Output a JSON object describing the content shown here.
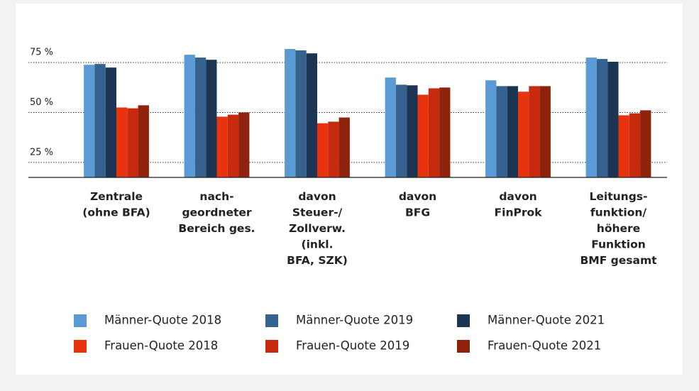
{
  "chart_data": {
    "type": "bar",
    "categories": [
      [
        "Zentrale",
        "(ohne BFA)"
      ],
      [
        "nach-",
        "geordneter",
        "Bereich ges."
      ],
      [
        "davon",
        "Steuer-/",
        "Zollverw.",
        "(inkl.",
        "BFA, SZK)"
      ],
      [
        "davon",
        "BFG"
      ],
      [
        "davon",
        "FinProk"
      ],
      [
        "Leitungs-",
        "funktion/",
        "höhere",
        "Funktion",
        "BMF gesamt"
      ]
    ],
    "series": [
      {
        "name": "Männer-Quote 2018",
        "color": "#5b9bd5",
        "values": [
          68.9,
          73.9,
          76.8,
          62.5,
          61.1,
          72.5
        ]
      },
      {
        "name": "Männer-Quote 2019",
        "color": "#35628f",
        "values": [
          69.3,
          72.5,
          76.1,
          58.9,
          58.2,
          71.8
        ]
      },
      {
        "name": "Männer-Quote 2021",
        "color": "#1c3553",
        "values": [
          67.5,
          71.4,
          74.6,
          58.6,
          58.2,
          70.4
        ]
      },
      {
        "name": "Frauen-Quote 2018",
        "color": "#e8330f",
        "values": [
          47.5,
          42.9,
          39.6,
          53.9,
          55.4,
          43.6
        ]
      },
      {
        "name": "Frauen-Quote 2019",
        "color": "#c82a10",
        "values": [
          47.1,
          43.9,
          40.4,
          57.1,
          58.2,
          44.6
        ]
      },
      {
        "name": "Frauen-Quote 2021",
        "color": "#8e220a",
        "values": [
          48.6,
          45.0,
          42.5,
          57.5,
          58.2,
          46.1
        ]
      }
    ],
    "ylim": [
      12.5,
      80
    ],
    "yticks": [
      {
        "value": 25,
        "label": "25 %"
      },
      {
        "value": 50,
        "label": "50 %"
      },
      {
        "value": 75,
        "label": "75 %"
      }
    ],
    "grid": true
  }
}
